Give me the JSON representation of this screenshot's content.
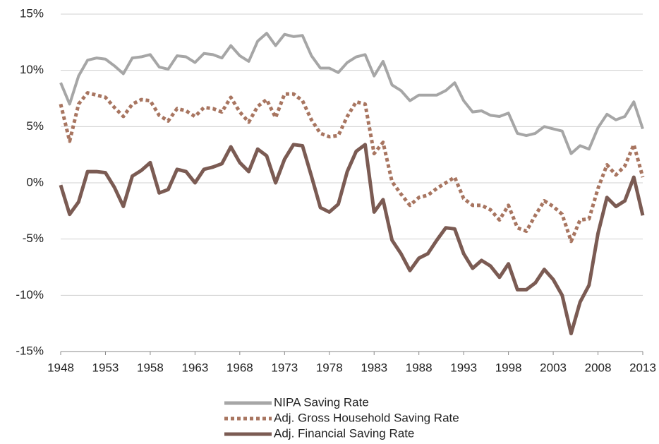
{
  "chart_data": {
    "type": "line",
    "x": [
      1948,
      1949,
      1950,
      1951,
      1952,
      1953,
      1954,
      1955,
      1956,
      1957,
      1958,
      1959,
      1960,
      1961,
      1962,
      1963,
      1964,
      1965,
      1966,
      1967,
      1968,
      1969,
      1970,
      1971,
      1972,
      1973,
      1974,
      1975,
      1976,
      1977,
      1978,
      1979,
      1980,
      1981,
      1982,
      1983,
      1984,
      1985,
      1986,
      1987,
      1988,
      1989,
      1990,
      1991,
      1992,
      1993,
      1994,
      1995,
      1996,
      1997,
      1998,
      1999,
      2000,
      2001,
      2002,
      2003,
      2004,
      2005,
      2006,
      2007,
      2008,
      2009,
      2010,
      2011,
      2012,
      2013
    ],
    "xlim": [
      1948,
      2013
    ],
    "xticks": [
      1948,
      1953,
      1958,
      1963,
      1968,
      1973,
      1978,
      1983,
      1988,
      1993,
      1998,
      2003,
      2008,
      2013
    ],
    "ylim": [
      -15,
      15
    ],
    "yticks": [
      {
        "value": -15,
        "label": "-15%"
      },
      {
        "value": -10,
        "label": "-10%"
      },
      {
        "value": -5,
        "label": "-5%"
      },
      {
        "value": 0,
        "label": "0%"
      },
      {
        "value": 5,
        "label": "5%"
      },
      {
        "value": 10,
        "label": "10%"
      },
      {
        "value": 15,
        "label": "15%"
      }
    ],
    "grid": true,
    "legend": "bottom",
    "series": [
      {
        "name": "NIPA Saving Rate",
        "color": "#a6a6a6",
        "style": "solid",
        "values": [
          8.9,
          7.0,
          9.5,
          10.9,
          11.1,
          11.0,
          10.4,
          9.7,
          11.1,
          11.2,
          11.4,
          10.3,
          10.1,
          11.3,
          11.2,
          10.7,
          11.5,
          11.4,
          11.1,
          12.2,
          11.3,
          10.8,
          12.6,
          13.3,
          12.2,
          13.2,
          13.0,
          13.1,
          11.3,
          10.2,
          10.2,
          9.8,
          10.7,
          11.2,
          11.4,
          9.5,
          10.8,
          8.7,
          8.2,
          7.3,
          7.8,
          7.8,
          7.8,
          8.2,
          8.9,
          7.3,
          6.3,
          6.4,
          6.0,
          5.9,
          6.2,
          4.4,
          4.2,
          4.4,
          5.0,
          4.8,
          4.6,
          2.6,
          3.3,
          3.0,
          4.9,
          6.1,
          5.6,
          5.9,
          7.2,
          4.8
        ]
      },
      {
        "name": "Adj. Gross Household Saving Rate",
        "color": "#a87560",
        "style": "dotted",
        "values": [
          7.0,
          3.7,
          7.0,
          8.0,
          7.8,
          7.6,
          6.7,
          5.9,
          7.0,
          7.4,
          7.3,
          6.0,
          5.5,
          6.6,
          6.4,
          5.9,
          6.7,
          6.6,
          6.3,
          7.6,
          6.3,
          5.4,
          6.8,
          7.4,
          5.8,
          7.9,
          7.9,
          7.3,
          5.6,
          4.4,
          4.1,
          4.2,
          5.9,
          7.2,
          7.0,
          2.6,
          3.6,
          0.1,
          -1.0,
          -2.0,
          -1.3,
          -1.1,
          -0.5,
          0.0,
          0.5,
          -1.4,
          -2.0,
          -2.0,
          -2.4,
          -3.3,
          -2.0,
          -4.0,
          -4.3,
          -2.9,
          -1.6,
          -2.1,
          -2.8,
          -5.2,
          -3.3,
          -3.2,
          -0.5,
          1.6,
          0.7,
          1.5,
          3.4,
          0.5
        ]
      },
      {
        "name": "Adj. Financial Saving Rate",
        "color": "#7b5b53",
        "style": "solid",
        "values": [
          -0.2,
          -2.8,
          -1.7,
          1.0,
          1.0,
          0.9,
          -0.4,
          -2.1,
          0.6,
          1.1,
          1.8,
          -0.9,
          -0.6,
          1.2,
          1.0,
          0.0,
          1.2,
          1.4,
          1.7,
          3.2,
          1.8,
          1.0,
          3.0,
          2.4,
          0.0,
          2.1,
          3.4,
          3.3,
          0.6,
          -2.2,
          -2.6,
          -1.9,
          1.0,
          2.8,
          3.4,
          -2.6,
          -1.5,
          -5.1,
          -6.3,
          -7.8,
          -6.7,
          -6.3,
          -5.1,
          -4.0,
          -4.1,
          -6.3,
          -7.6,
          -6.9,
          -7.4,
          -8.4,
          -7.2,
          -9.5,
          -9.5,
          -8.9,
          -7.7,
          -8.6,
          -10.0,
          -13.4,
          -10.6,
          -9.1,
          -4.5,
          -1.3,
          -2.1,
          -1.6,
          0.5,
          -2.9
        ]
      }
    ]
  }
}
